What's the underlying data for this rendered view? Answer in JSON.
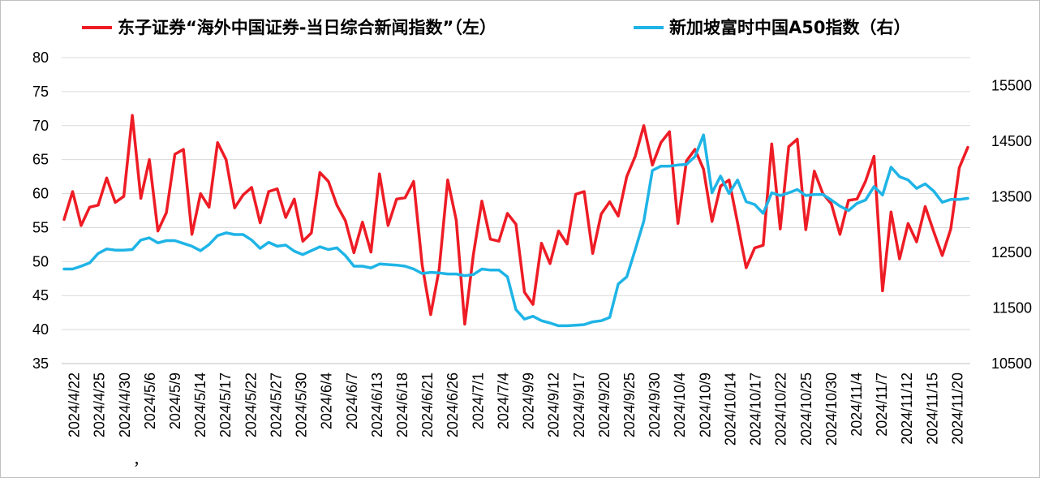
{
  "chart_data": {
    "type": "line",
    "legend": {
      "position": "top",
      "entries": [
        {
          "label": "东子证券“海外中国证券-当日综合新闻指数”（左）",
          "color": "#ee1c25",
          "axis": "left"
        },
        {
          "label": "新加坡富时中国A50指数（右）",
          "color": "#1fb4e6",
          "axis": "right"
        }
      ]
    },
    "y_left": {
      "ylim": [
        35,
        80
      ],
      "ticks": [
        "35",
        "40",
        "45",
        "50",
        "55",
        "60",
        "65",
        "70",
        "75",
        "80"
      ]
    },
    "y_right": {
      "ylim": [
        10500,
        16000
      ],
      "ticks": [
        "10500",
        "11500",
        "12500",
        "13500",
        "14500",
        "15500"
      ]
    },
    "grid": true,
    "x_tick_labels": [
      "2024/4/22",
      "2024/4/25",
      "2024/4/30",
      "2024/5/6",
      "2024/5/9",
      "2024/5/14",
      "2024/5/17",
      "2024/5/22",
      "2024/5/27",
      "2024/5/30",
      "2024/6/4",
      "2024/6/7",
      "2024/6/13",
      "2024/6/18",
      "2024/6/21",
      "2024/6/26",
      "2024/7/1",
      "2024/7/4",
      "2024/9/9",
      "2024/9/12",
      "2024/9/17",
      "2024/9/20",
      "2024/9/25",
      "2024/9/30",
      "2024/10/4",
      "2024/10/9",
      "2024/10/14",
      "2024/10/17",
      "2024/10/22",
      "2024/10/25",
      "2024/10/30",
      "2024/11/4",
      "2024/11/7",
      "2024/11/12",
      "2024/11/15",
      "2024/11/20"
    ],
    "stray_mark": "，",
    "series": [
      {
        "name": "东子证券“海外中国证券-当日综合新闻指数”（左）",
        "axis": "left",
        "color": "#ee1c25",
        "values": [
          56.2,
          60.3,
          55.3,
          58.0,
          58.3,
          62.3,
          58.7,
          59.6,
          71.5,
          59.3,
          65.0,
          54.5,
          57.2,
          65.8,
          66.5,
          54.0,
          60.0,
          58.0,
          67.5,
          65.0,
          57.9,
          59.8,
          60.9,
          55.7,
          60.3,
          60.7,
          56.5,
          59.2,
          53.0,
          54.2,
          63.1,
          61.8,
          58.3,
          56.0,
          51.3,
          55.8,
          51.4,
          62.9,
          55.3,
          59.2,
          59.4,
          61.8,
          49.5,
          42.2,
          48.9,
          62.0,
          56.1,
          40.8,
          51.0,
          58.9,
          53.3,
          53.0,
          57.1,
          55.5,
          45.5,
          43.7,
          52.7,
          49.7,
          54.5,
          52.6,
          59.9,
          60.3,
          51.2,
          57.0,
          58.8,
          56.7,
          62.5,
          65.5,
          70.0,
          64.2,
          67.5,
          69.1,
          55.6,
          64.8,
          66.5,
          63.6,
          55.9,
          61.1,
          62.0,
          55.7,
          49.1,
          52.0,
          52.4,
          67.3,
          54.8,
          66.9,
          68.0,
          54.7,
          63.3,
          60.0,
          58.5,
          54.0,
          59.0,
          59.2,
          61.8,
          65.5,
          45.7,
          57.3,
          50.4,
          55.6,
          52.9,
          58.1,
          54.4,
          50.9,
          54.8,
          63.8,
          66.8
        ]
      },
      {
        "name": "新加坡富时中国A50指数（右）",
        "axis": "right",
        "color": "#1fb4e6",
        "values": [
          12200,
          12200,
          12250,
          12310,
          12480,
          12560,
          12540,
          12540,
          12550,
          12720,
          12760,
          12670,
          12710,
          12710,
          12660,
          12610,
          12530,
          12640,
          12800,
          12850,
          12820,
          12820,
          12720,
          12570,
          12680,
          12610,
          12630,
          12520,
          12460,
          12530,
          12600,
          12550,
          12580,
          12440,
          12250,
          12250,
          12220,
          12290,
          12280,
          12270,
          12250,
          12200,
          12120,
          12140,
          12130,
          12110,
          12110,
          12080,
          12100,
          12200,
          12180,
          12180,
          12060,
          11470,
          11300,
          11350,
          11270,
          11230,
          11180,
          11180,
          11190,
          11200,
          11250,
          11270,
          11330,
          11930,
          12060,
          12550,
          13060,
          13970,
          14050,
          14050,
          14070,
          14080,
          14220,
          14610,
          13570,
          13870,
          13560,
          13800,
          13410,
          13360,
          13200,
          13570,
          13520,
          13570,
          13630,
          13520,
          13540,
          13540,
          13440,
          13330,
          13250,
          13380,
          13440,
          13680,
          13530,
          14030,
          13860,
          13800,
          13650,
          13730,
          13600,
          13400,
          13450,
          13450,
          13470
        ]
      }
    ]
  }
}
